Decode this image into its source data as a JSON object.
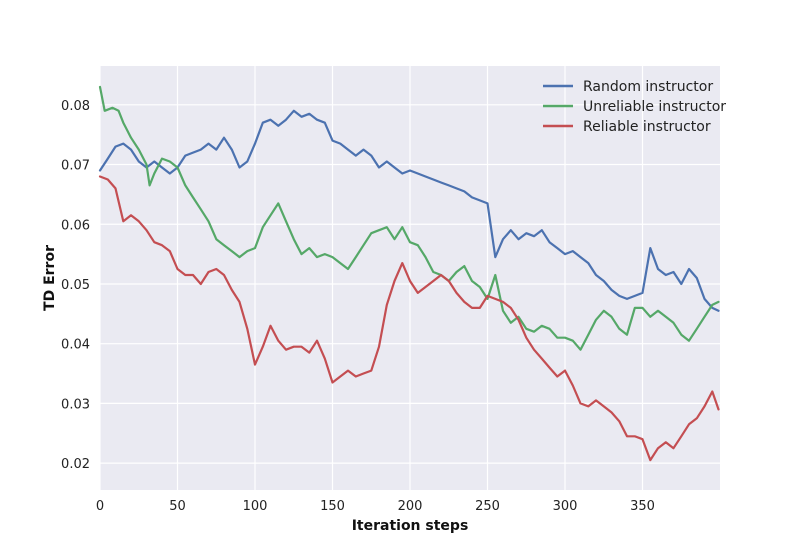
{
  "chart_data": {
    "type": "line",
    "title": "",
    "xlabel": "Iteration steps",
    "ylabel": "TD Error",
    "xlim": [
      0,
      400
    ],
    "ylim": [
      0.0155,
      0.0865
    ],
    "xticks": [
      0,
      50,
      100,
      150,
      200,
      250,
      300,
      350
    ],
    "yticks": [
      0.02,
      0.03,
      0.04,
      0.05,
      0.06,
      0.07,
      0.08
    ],
    "xtick_labels": [
      "0",
      "50",
      "100",
      "150",
      "200",
      "250",
      "300",
      "350"
    ],
    "ytick_labels": [
      "0.02",
      "0.03",
      "0.04",
      "0.05",
      "0.06",
      "0.07",
      "0.08"
    ],
    "grid": true,
    "background": "#EAEAF2",
    "legend_position": "top-right",
    "series": [
      {
        "name": "Random instructor",
        "color": "#4C72B0",
        "points": [
          [
            0,
            0.069
          ],
          [
            5,
            0.071
          ],
          [
            10,
            0.073
          ],
          [
            15,
            0.0735
          ],
          [
            20,
            0.0725
          ],
          [
            25,
            0.0705
          ],
          [
            30,
            0.0695
          ],
          [
            35,
            0.0705
          ],
          [
            40,
            0.0695
          ],
          [
            45,
            0.0685
          ],
          [
            50,
            0.0695
          ],
          [
            55,
            0.0715
          ],
          [
            60,
            0.072
          ],
          [
            65,
            0.0725
          ],
          [
            70,
            0.0735
          ],
          [
            75,
            0.0725
          ],
          [
            80,
            0.0745
          ],
          [
            85,
            0.0725
          ],
          [
            90,
            0.0695
          ],
          [
            95,
            0.0705
          ],
          [
            100,
            0.0735
          ],
          [
            105,
            0.077
          ],
          [
            110,
            0.0775
          ],
          [
            115,
            0.0765
          ],
          [
            120,
            0.0775
          ],
          [
            125,
            0.079
          ],
          [
            130,
            0.078
          ],
          [
            135,
            0.0785
          ],
          [
            140,
            0.0775
          ],
          [
            145,
            0.077
          ],
          [
            150,
            0.074
          ],
          [
            155,
            0.0735
          ],
          [
            160,
            0.0725
          ],
          [
            165,
            0.0715
          ],
          [
            170,
            0.0725
          ],
          [
            175,
            0.0715
          ],
          [
            180,
            0.0695
          ],
          [
            185,
            0.0705
          ],
          [
            190,
            0.0695
          ],
          [
            195,
            0.0685
          ],
          [
            200,
            0.069
          ],
          [
            205,
            0.0685
          ],
          [
            210,
            0.068
          ],
          [
            215,
            0.0675
          ],
          [
            220,
            0.067
          ],
          [
            225,
            0.0665
          ],
          [
            230,
            0.066
          ],
          [
            235,
            0.0655
          ],
          [
            240,
            0.0645
          ],
          [
            245,
            0.064
          ],
          [
            250,
            0.0635
          ],
          [
            255,
            0.0545
          ],
          [
            260,
            0.0575
          ],
          [
            265,
            0.059
          ],
          [
            270,
            0.0575
          ],
          [
            275,
            0.0585
          ],
          [
            280,
            0.058
          ],
          [
            285,
            0.059
          ],
          [
            290,
            0.057
          ],
          [
            295,
            0.056
          ],
          [
            300,
            0.055
          ],
          [
            305,
            0.0555
          ],
          [
            310,
            0.0545
          ],
          [
            315,
            0.0535
          ],
          [
            320,
            0.0515
          ],
          [
            325,
            0.0505
          ],
          [
            330,
            0.049
          ],
          [
            335,
            0.048
          ],
          [
            340,
            0.0475
          ],
          [
            345,
            0.048
          ],
          [
            350,
            0.0485
          ],
          [
            355,
            0.056
          ],
          [
            360,
            0.0525
          ],
          [
            365,
            0.0515
          ],
          [
            370,
            0.052
          ],
          [
            375,
            0.05
          ],
          [
            380,
            0.0525
          ],
          [
            385,
            0.051
          ],
          [
            390,
            0.0475
          ],
          [
            395,
            0.046
          ],
          [
            399,
            0.0455
          ]
        ]
      },
      {
        "name": "Unreliable instructor",
        "color": "#55A868",
        "points": [
          [
            0,
            0.083
          ],
          [
            3,
            0.079
          ],
          [
            8,
            0.0795
          ],
          [
            12,
            0.079
          ],
          [
            15,
            0.077
          ],
          [
            20,
            0.0745
          ],
          [
            25,
            0.0725
          ],
          [
            30,
            0.07
          ],
          [
            32,
            0.0665
          ],
          [
            35,
            0.0685
          ],
          [
            40,
            0.071
          ],
          [
            45,
            0.0705
          ],
          [
            50,
            0.0695
          ],
          [
            55,
            0.0665
          ],
          [
            60,
            0.0645
          ],
          [
            65,
            0.0625
          ],
          [
            70,
            0.0605
          ],
          [
            75,
            0.0575
          ],
          [
            80,
            0.0565
          ],
          [
            85,
            0.0555
          ],
          [
            90,
            0.0545
          ],
          [
            95,
            0.0555
          ],
          [
            100,
            0.056
          ],
          [
            105,
            0.0595
          ],
          [
            110,
            0.0615
          ],
          [
            115,
            0.0635
          ],
          [
            120,
            0.0605
          ],
          [
            125,
            0.0575
          ],
          [
            130,
            0.055
          ],
          [
            135,
            0.056
          ],
          [
            140,
            0.0545
          ],
          [
            145,
            0.055
          ],
          [
            150,
            0.0545
          ],
          [
            155,
            0.0535
          ],
          [
            160,
            0.0525
          ],
          [
            165,
            0.0545
          ],
          [
            170,
            0.0565
          ],
          [
            175,
            0.0585
          ],
          [
            180,
            0.059
          ],
          [
            185,
            0.0595
          ],
          [
            190,
            0.0575
          ],
          [
            195,
            0.0595
          ],
          [
            200,
            0.057
          ],
          [
            205,
            0.0565
          ],
          [
            210,
            0.0545
          ],
          [
            215,
            0.052
          ],
          [
            220,
            0.0515
          ],
          [
            225,
            0.0505
          ],
          [
            230,
            0.052
          ],
          [
            235,
            0.053
          ],
          [
            240,
            0.0505
          ],
          [
            245,
            0.0495
          ],
          [
            250,
            0.0475
          ],
          [
            255,
            0.0515
          ],
          [
            260,
            0.0455
          ],
          [
            265,
            0.0435
          ],
          [
            270,
            0.0445
          ],
          [
            275,
            0.0425
          ],
          [
            280,
            0.042
          ],
          [
            285,
            0.043
          ],
          [
            290,
            0.0425
          ],
          [
            295,
            0.041
          ],
          [
            300,
            0.041
          ],
          [
            305,
            0.0405
          ],
          [
            310,
            0.039
          ],
          [
            315,
            0.0415
          ],
          [
            320,
            0.044
          ],
          [
            325,
            0.0455
          ],
          [
            330,
            0.0445
          ],
          [
            335,
            0.0425
          ],
          [
            340,
            0.0415
          ],
          [
            345,
            0.046
          ],
          [
            350,
            0.046
          ],
          [
            355,
            0.0445
          ],
          [
            360,
            0.0455
          ],
          [
            365,
            0.0445
          ],
          [
            370,
            0.0435
          ],
          [
            375,
            0.0415
          ],
          [
            380,
            0.0405
          ],
          [
            385,
            0.0425
          ],
          [
            390,
            0.0445
          ],
          [
            395,
            0.0465
          ],
          [
            399,
            0.047
          ]
        ]
      },
      {
        "name": "Reliable instructor",
        "color": "#C44E52",
        "points": [
          [
            0,
            0.068
          ],
          [
            5,
            0.0675
          ],
          [
            10,
            0.066
          ],
          [
            15,
            0.0605
          ],
          [
            20,
            0.0615
          ],
          [
            25,
            0.0605
          ],
          [
            30,
            0.059
          ],
          [
            35,
            0.057
          ],
          [
            40,
            0.0565
          ],
          [
            45,
            0.0555
          ],
          [
            50,
            0.0525
          ],
          [
            55,
            0.0515
          ],
          [
            60,
            0.0515
          ],
          [
            65,
            0.05
          ],
          [
            70,
            0.052
          ],
          [
            75,
            0.0525
          ],
          [
            80,
            0.0515
          ],
          [
            85,
            0.049
          ],
          [
            90,
            0.047
          ],
          [
            95,
            0.0425
          ],
          [
            100,
            0.0365
          ],
          [
            105,
            0.0395
          ],
          [
            110,
            0.043
          ],
          [
            115,
            0.0405
          ],
          [
            120,
            0.039
          ],
          [
            125,
            0.0395
          ],
          [
            130,
            0.0395
          ],
          [
            135,
            0.0385
          ],
          [
            140,
            0.0405
          ],
          [
            145,
            0.0375
          ],
          [
            150,
            0.0335
          ],
          [
            155,
            0.0345
          ],
          [
            160,
            0.0355
          ],
          [
            165,
            0.0345
          ],
          [
            170,
            0.035
          ],
          [
            175,
            0.0355
          ],
          [
            180,
            0.0395
          ],
          [
            185,
            0.0465
          ],
          [
            190,
            0.0505
          ],
          [
            195,
            0.0535
          ],
          [
            200,
            0.0505
          ],
          [
            205,
            0.0485
          ],
          [
            210,
            0.0495
          ],
          [
            215,
            0.0505
          ],
          [
            220,
            0.0515
          ],
          [
            225,
            0.0505
          ],
          [
            230,
            0.0485
          ],
          [
            235,
            0.047
          ],
          [
            240,
            0.046
          ],
          [
            245,
            0.046
          ],
          [
            250,
            0.048
          ],
          [
            255,
            0.0475
          ],
          [
            260,
            0.047
          ],
          [
            265,
            0.046
          ],
          [
            270,
            0.044
          ],
          [
            275,
            0.041
          ],
          [
            280,
            0.039
          ],
          [
            285,
            0.0375
          ],
          [
            290,
            0.036
          ],
          [
            295,
            0.0345
          ],
          [
            300,
            0.0355
          ],
          [
            305,
            0.033
          ],
          [
            310,
            0.03
          ],
          [
            315,
            0.0295
          ],
          [
            320,
            0.0305
          ],
          [
            325,
            0.0295
          ],
          [
            330,
            0.0285
          ],
          [
            335,
            0.027
          ],
          [
            340,
            0.0245
          ],
          [
            345,
            0.0245
          ],
          [
            350,
            0.024
          ],
          [
            355,
            0.0205
          ],
          [
            360,
            0.0225
          ],
          [
            365,
            0.0235
          ],
          [
            370,
            0.0225
          ],
          [
            375,
            0.0245
          ],
          [
            380,
            0.0265
          ],
          [
            385,
            0.0275
          ],
          [
            390,
            0.0295
          ],
          [
            395,
            0.032
          ],
          [
            399,
            0.029
          ]
        ]
      }
    ]
  }
}
